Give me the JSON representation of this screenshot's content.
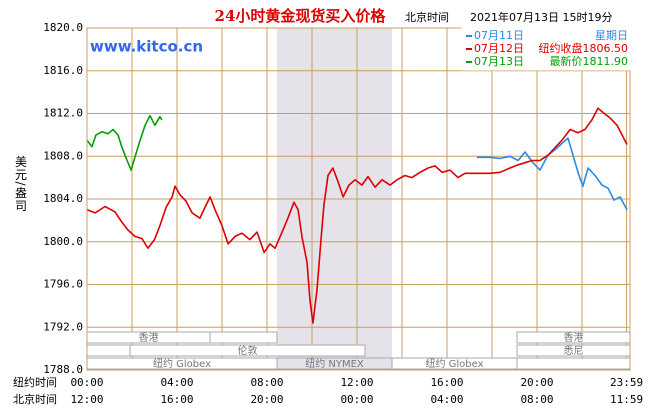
{
  "chart_data": {
    "type": "line",
    "title": "24小时黄金现货买入价格",
    "time_zone": "北京时间",
    "timestamp": "2021年07月13日 15时19分",
    "watermark": "www.kitco.cn",
    "y_label": "美元/盎司",
    "x_label": "纽约时间",
    "x2_label": "北京时间",
    "ylim": [
      1788,
      1820
    ],
    "yticks": [
      {
        "value": 1788,
        "label": "1788.0"
      },
      {
        "value": 1792,
        "label": "1792.0"
      },
      {
        "value": 1796,
        "label": "1796.0"
      },
      {
        "value": 1800,
        "label": "1800.0"
      },
      {
        "value": 1804,
        "label": "1804.0"
      },
      {
        "value": 1808,
        "label": "1808.0"
      },
      {
        "value": 1812,
        "label": "1812.0"
      },
      {
        "value": 1816,
        "label": "1816.0"
      },
      {
        "value": 1820,
        "label": "1820.0"
      }
    ],
    "xlim": [
      0,
      24
    ],
    "xticks": [
      {
        "value": 0,
        "label": "00:00"
      },
      {
        "value": 4,
        "label": "04:00"
      },
      {
        "value": 8,
        "label": "08:00"
      },
      {
        "value": 12,
        "label": "12:00"
      },
      {
        "value": 16,
        "label": "16:00"
      },
      {
        "value": 20,
        "label": "20:00"
      },
      {
        "value": 23.98,
        "label": "23:59"
      }
    ],
    "x2ticks": [
      {
        "value": 0,
        "label": "12:00"
      },
      {
        "value": 4,
        "label": "16:00"
      },
      {
        "value": 8,
        "label": "20:00"
      },
      {
        "value": 12,
        "label": "00:00"
      },
      {
        "value": 16,
        "label": "04:00"
      },
      {
        "value": 20,
        "label": "08:00"
      },
      {
        "value": 23.98,
        "label": "11:59"
      }
    ],
    "xgrid": [
      2,
      6,
      10,
      14,
      18,
      22
    ],
    "grid": true,
    "sessions": [
      "香港",
      "香港",
      "伦敦",
      "悉尼",
      "纽约 Globex",
      "纽约 NYMEX",
      "纽约 Globex"
    ],
    "series": [
      {
        "name": "07月11日",
        "note": "星期日",
        "color": "#2a8ae6",
        "x": [
          17.33,
          17.91,
          18.36,
          18.8,
          19.16,
          19.47,
          19.78,
          20.13,
          20.49,
          20.8,
          21.11,
          21.38,
          21.6,
          21.82,
          22.04,
          22.27,
          22.58,
          22.89,
          23.16,
          23.42,
          23.69,
          24.0
        ],
        "values": [
          1807.9,
          1807.9,
          1807.8,
          1808.0,
          1807.6,
          1808.4,
          1807.5,
          1806.7,
          1808.1,
          1808.6,
          1809.2,
          1809.7,
          1808.1,
          1806.5,
          1805.2,
          1806.9,
          1806.2,
          1805.3,
          1805.0,
          1803.9,
          1804.2,
          1803.0
        ]
      },
      {
        "name": "07月12日",
        "note": "纽约收盘1806.50",
        "color": "#dd0000",
        "x": [
          0,
          0.36,
          0.8,
          1.24,
          1.56,
          1.82,
          2.13,
          2.44,
          2.71,
          3.0,
          3.24,
          3.51,
          3.78,
          3.91,
          4.13,
          4.4,
          4.67,
          5.02,
          5.24,
          5.47,
          5.69,
          6.0,
          6.27,
          6.58,
          6.89,
          7.24,
          7.56,
          7.87,
          8.13,
          8.36,
          8.67,
          8.93,
          9.2,
          9.38,
          9.56,
          9.78,
          9.91,
          10.04,
          10.22,
          10.4,
          10.53,
          10.71,
          10.93,
          11.16,
          11.38,
          11.64,
          11.91,
          12.22,
          12.49,
          12.8,
          13.11,
          13.47,
          13.78,
          14.13,
          14.44,
          14.8,
          15.16,
          15.47,
          15.78,
          16.13,
          16.49,
          16.8,
          17.11,
          17.91,
          18.36,
          18.8,
          19.16,
          19.47,
          19.78,
          20.13,
          20.49,
          20.8,
          21.11,
          21.47,
          21.82,
          22.13,
          22.44,
          22.71,
          22.93,
          23.24,
          23.56,
          23.78,
          24.0
        ],
        "values": [
          1803.0,
          1802.7,
          1803.3,
          1802.8,
          1801.8,
          1801.1,
          1800.5,
          1800.3,
          1799.4,
          1800.2,
          1801.5,
          1803.2,
          1804.2,
          1805.2,
          1804.4,
          1803.8,
          1802.7,
          1802.2,
          1803.2,
          1804.2,
          1803.0,
          1801.5,
          1799.8,
          1800.5,
          1800.8,
          1800.2,
          1800.9,
          1799.0,
          1799.8,
          1799.4,
          1800.9,
          1802.2,
          1803.7,
          1803.0,
          1800.4,
          1798.1,
          1794.5,
          1792.4,
          1795.5,
          1800.2,
          1803.4,
          1806.2,
          1806.9,
          1805.6,
          1804.2,
          1805.3,
          1805.8,
          1805.3,
          1806.1,
          1805.1,
          1805.8,
          1805.3,
          1805.8,
          1806.2,
          1806.0,
          1806.5,
          1806.9,
          1807.1,
          1806.5,
          1806.7,
          1806.0,
          1806.4,
          1806.4,
          1806.4,
          1806.5,
          1806.9,
          1807.2,
          1807.4,
          1807.6,
          1807.6,
          1808.1,
          1808.8,
          1809.5,
          1810.5,
          1810.2,
          1810.5,
          1811.4,
          1812.5,
          1812.1,
          1811.6,
          1810.9,
          1810.0,
          1809.1
        ]
      },
      {
        "name": "07月13日",
        "note": "最新价1811.90",
        "color": "#00a000",
        "x": [
          0,
          0.22,
          0.4,
          0.67,
          0.93,
          1.16,
          1.38,
          1.56,
          1.78,
          1.96,
          2.13,
          2.36,
          2.58,
          2.8,
          3.02,
          3.24,
          3.33
        ],
        "values": [
          1809.5,
          1808.9,
          1810.0,
          1810.3,
          1810.1,
          1810.5,
          1810.0,
          1808.8,
          1807.6,
          1806.7,
          1807.9,
          1809.5,
          1810.9,
          1811.8,
          1810.9,
          1811.7,
          1811.4
        ]
      }
    ]
  }
}
